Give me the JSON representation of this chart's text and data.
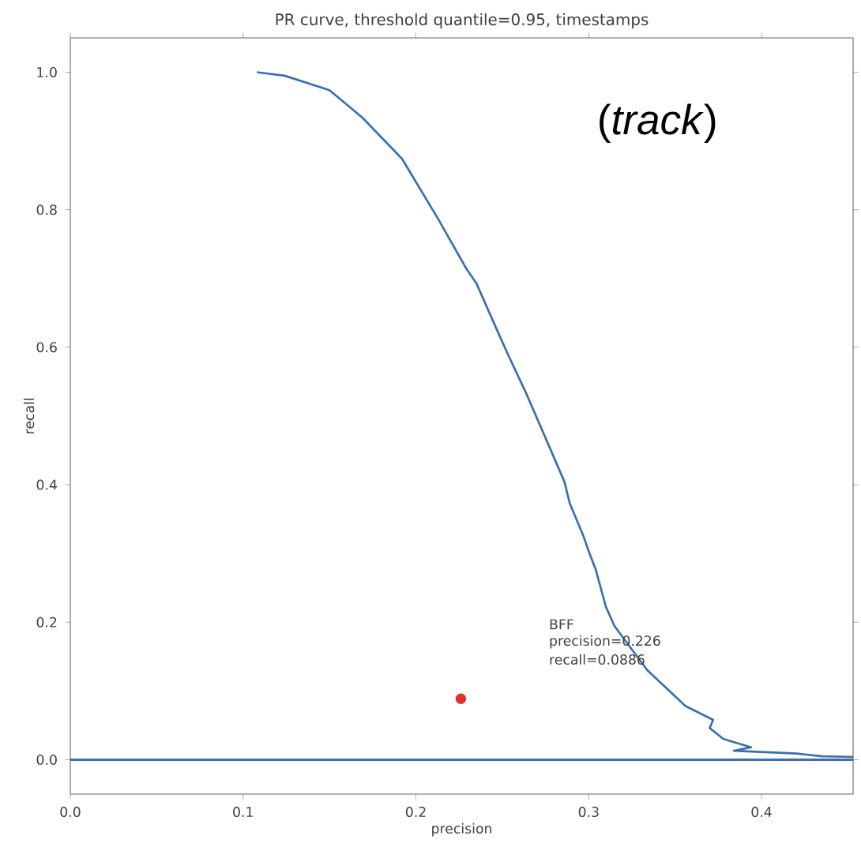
{
  "chart_data": {
    "type": "line",
    "title": "PR curve, threshold quantile=0.95, timestamps",
    "xlabel": "precision",
    "ylabel": "recall",
    "xlim": [
      0,
      0.453
    ],
    "ylim": [
      -0.05,
      1.05
    ],
    "xticks": [
      {
        "value": 0,
        "label": "0.0"
      },
      {
        "value": 0.1,
        "label": "0.1"
      },
      {
        "value": 0.2,
        "label": "0.2"
      },
      {
        "value": 0.3,
        "label": "0.3"
      },
      {
        "value": 0.4,
        "label": "0.4"
      }
    ],
    "yticks": [
      {
        "value": 0,
        "label": "0.0"
      },
      {
        "value": 0.2,
        "label": "0.2"
      },
      {
        "value": 0.4,
        "label": "0.4"
      },
      {
        "value": 0.6,
        "label": "0.6"
      },
      {
        "value": 0.8,
        "label": "0.8"
      },
      {
        "value": 1,
        "label": "1.0"
      }
    ],
    "grid": false,
    "series": [
      {
        "color": "#3b6fb0",
        "marker": "none",
        "x": [
          0.108,
          0.124,
          0.15,
          0.169,
          0.192,
          0.213,
          0.229,
          0.235,
          0.248,
          0.253,
          0.264,
          0.275,
          0.286,
          0.289,
          0.297,
          0.3,
          0.304,
          0.31,
          0.315,
          0.334,
          0.356,
          0.372,
          0.37,
          0.378,
          0.394,
          0.384,
          0.42,
          0.435,
          0.453
        ],
        "values": [
          1.0,
          0.995,
          0.974,
          0.934,
          0.874,
          0.786,
          0.715,
          0.693,
          0.619,
          0.591,
          0.532,
          0.468,
          0.404,
          0.373,
          0.325,
          0.303,
          0.277,
          0.222,
          0.194,
          0.13,
          0.078,
          0.058,
          0.046,
          0.03,
          0.018,
          0.013,
          0.009,
          0.005,
          0.004
        ]
      },
      {
        "type": "scatter",
        "color": "#e0302a",
        "marker": "circle",
        "x": [
          0.226
        ],
        "values": [
          0.0886
        ]
      }
    ],
    "ref_lines": [
      {
        "axis": "y",
        "value": 0,
        "color": "#3b6fb0",
        "line_style": "solid"
      }
    ],
    "annotations": [
      "BFF",
      "precision=0.226",
      "recall=0.0886",
      "(*track*)"
    ]
  }
}
